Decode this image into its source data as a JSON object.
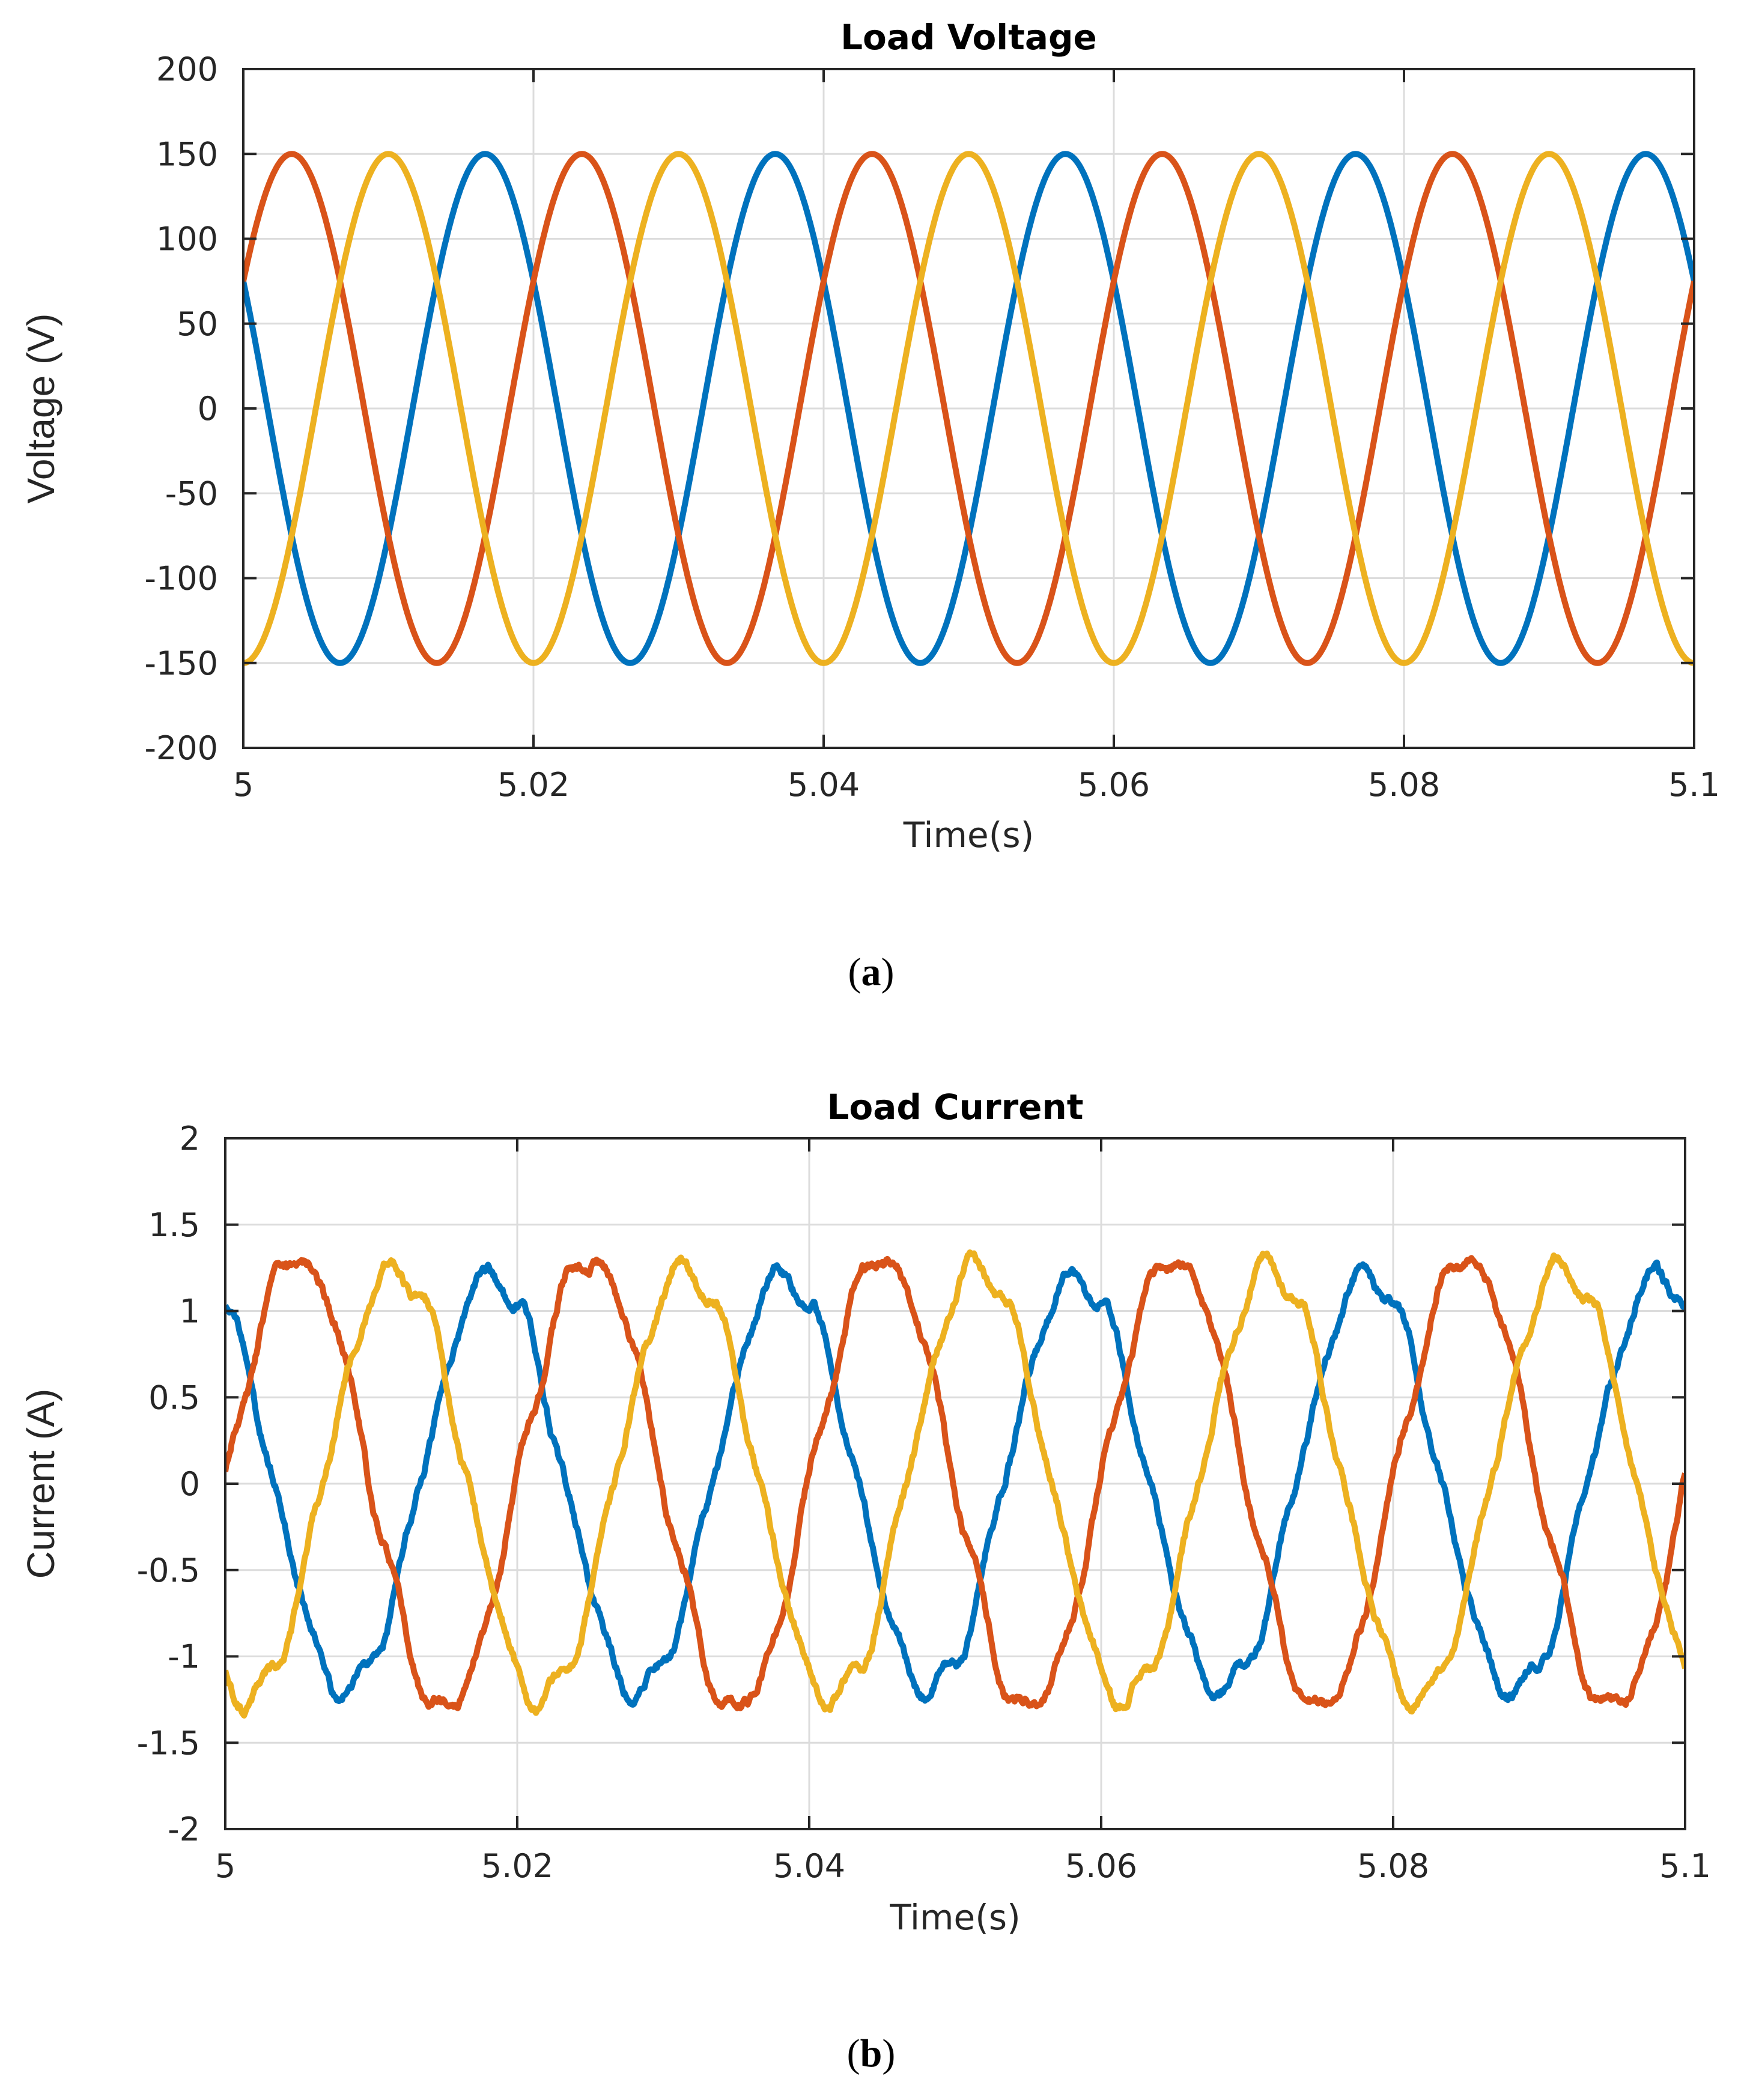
{
  "chart_data": [
    {
      "type": "line",
      "title": "Load Voltage",
      "xlabel": "Time(s)",
      "ylabel": "Voltage (V)",
      "xlim": [
        5,
        5.1
      ],
      "ylim": [
        -200,
        200
      ],
      "xticks": [
        5,
        5.02,
        5.04,
        5.06,
        5.08,
        5.1
      ],
      "xtick_labels": [
        "5",
        "5.02",
        "5.04",
        "5.06",
        "5.08",
        "5.1"
      ],
      "yticks": [
        200,
        150,
        100,
        50,
        0,
        -50,
        -100,
        -150,
        -200
      ],
      "ytick_labels": [
        "200",
        "150",
        "100",
        "50",
        "0",
        "-50",
        "-100",
        "-150",
        "-200"
      ],
      "grid": true,
      "frequency_hz": 50,
      "series": [
        {
          "color": "#0072BD",
          "amplitude": 150,
          "phase_deg": 150,
          "waveform": "sine"
        },
        {
          "color": "#D95319",
          "amplitude": 150,
          "phase_deg": 30,
          "waveform": "sine"
        },
        {
          "color": "#EDB120",
          "amplitude": 150,
          "phase_deg": -90,
          "waveform": "sine"
        }
      ],
      "caption": "a"
    },
    {
      "type": "line",
      "title": "Load Current",
      "xlabel": "Time(s)",
      "ylabel": "Current (A)",
      "xlim": [
        5,
        5.1
      ],
      "ylim": [
        -2,
        2
      ],
      "xticks": [
        5,
        5.02,
        5.04,
        5.06,
        5.08,
        5.1
      ],
      "xtick_labels": [
        "5",
        "5.02",
        "5.04",
        "5.06",
        "5.08",
        "5.1"
      ],
      "yticks": [
        2,
        1.5,
        1,
        0.5,
        0,
        -0.5,
        -1,
        -1.5,
        -2
      ],
      "ytick_labels": [
        "2",
        "1.5",
        "1",
        "0.5",
        "0",
        "-0.5",
        "-1",
        "-1.5",
        "-2"
      ],
      "grid": true,
      "frequency_hz": 50,
      "series": [
        {
          "color": "#0072BD",
          "amplitude": 1.2,
          "phase_deg": 120,
          "waveform": "noisy sine"
        },
        {
          "color": "#D95319",
          "amplitude": 1.3,
          "phase_deg": 0,
          "waveform": "noisy sine"
        },
        {
          "color": "#EDB120",
          "amplitude": 1.25,
          "phase_deg": -120,
          "waveform": "noisy sine"
        }
      ],
      "caption": "b"
    }
  ]
}
